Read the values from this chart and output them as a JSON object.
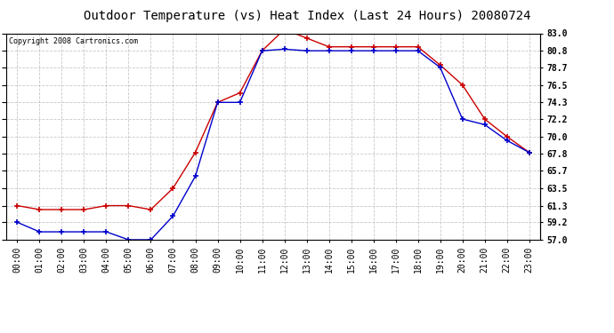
{
  "title": "Outdoor Temperature (vs) Heat Index (Last 24 Hours) 20080724",
  "copyright": "Copyright 2008 Cartronics.com",
  "x_labels": [
    "00:00",
    "01:00",
    "02:00",
    "03:00",
    "04:00",
    "05:00",
    "06:00",
    "07:00",
    "08:00",
    "09:00",
    "10:00",
    "11:00",
    "12:00",
    "13:00",
    "14:00",
    "15:00",
    "16:00",
    "17:00",
    "18:00",
    "19:00",
    "20:00",
    "21:00",
    "22:00",
    "23:00"
  ],
  "red_data": [
    61.3,
    60.8,
    60.8,
    60.8,
    61.3,
    61.3,
    60.8,
    63.5,
    68.0,
    74.3,
    75.5,
    80.8,
    83.5,
    82.4,
    81.3,
    81.3,
    81.3,
    81.3,
    81.3,
    79.0,
    76.5,
    72.2,
    70.0,
    68.0
  ],
  "blue_data": [
    59.2,
    58.0,
    58.0,
    58.0,
    58.0,
    57.0,
    57.0,
    60.0,
    65.0,
    74.3,
    74.3,
    80.8,
    81.0,
    80.8,
    80.8,
    80.8,
    80.8,
    80.8,
    80.8,
    78.7,
    72.2,
    71.5,
    69.5,
    68.0
  ],
  "red_color": "#cc0000",
  "blue_color": "#0000cc",
  "ylim_min": 57.0,
  "ylim_max": 83.0,
  "yticks": [
    57.0,
    59.2,
    61.3,
    63.5,
    65.7,
    67.8,
    70.0,
    72.2,
    74.3,
    76.5,
    78.7,
    80.8,
    83.0
  ],
  "bg_color": "#ffffff",
  "grid_color": "#bbbbbb",
  "title_fontsize": 10,
  "copyright_fontsize": 6,
  "tick_fontsize": 7,
  "ytick_fontsize": 7
}
